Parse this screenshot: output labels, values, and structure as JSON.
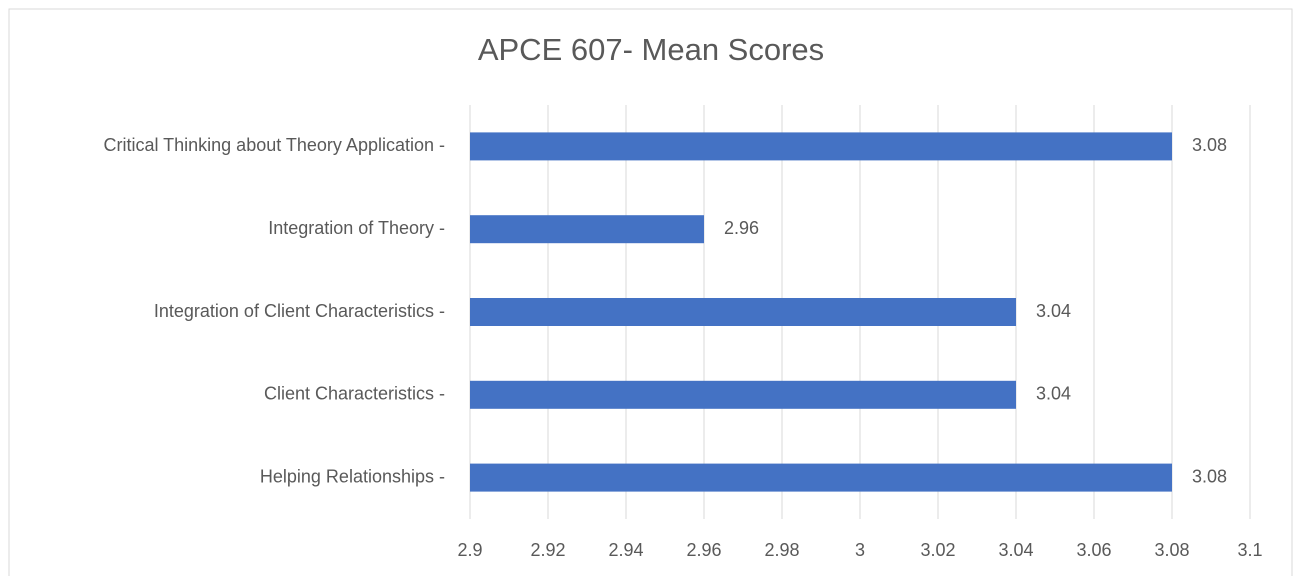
{
  "chart_data": {
    "type": "bar",
    "orientation": "horizontal",
    "title": "APCE 607- Mean Scores",
    "categories": [
      "Critical Thinking about Theory Application -",
      "Integration of Theory -",
      "Integration of Client Characteristics -",
      "Client Characteristics -",
      "Helping Relationships -"
    ],
    "values": [
      3.08,
      2.96,
      3.04,
      3.04,
      3.08
    ],
    "color": "#4472c4",
    "xlim": [
      2.9,
      3.1
    ],
    "xticks": [
      2.9,
      2.92,
      2.94,
      2.96,
      2.98,
      3,
      3.02,
      3.04,
      3.06,
      3.08,
      3.1
    ],
    "grid": true
  }
}
